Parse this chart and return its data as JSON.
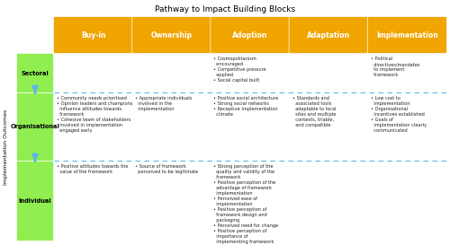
{
  "title": "Pathway to Impact Building Blocks",
  "columns": [
    "Buy-in",
    "Ownership",
    "Adoption",
    "Adaptation",
    "Implementation"
  ],
  "rows": [
    "Sectoral",
    "Organisational",
    "Individual"
  ],
  "col_header_color": "#F0A500",
  "row_header_color": "#90EE50",
  "bg_color": "#FFFFFF",
  "dashed_line_color": "#5BB8E8",
  "text_color": "#222222",
  "sectoral_texts": {
    "Adoption": "• Cosmopolitanism\n  encouraged\n• Competitive pressure\n  applied\n• Social capital built",
    "Implementation": "• Political\n  directives/mandates\n  to implement\n  framework"
  },
  "organisational_texts": {
    "Buy-in": "• Community needs prioritised\n• Opinion leaders and champions\n  influence attitudes towards\n  framework\n• Cohesive team of stakeholders\n  involved in implementation\n  engaged early",
    "Ownership": "• Appropriate individuals\n  involved in the\n  implementation",
    "Adoption": "• Positive social architecture\n• Strong social networks\n• Receptive implementation\n  climate",
    "Adaptation": "• Standards and\n  associated tools\n  adaptable to local\n  sites and multiple\n  contexts, triable,\n  and compatible",
    "Implementation": "• Low cost to\n  implementation\n• Organisational\n  incentives established\n• Goals of\n  implementation clearly\n  communicated"
  },
  "individual_texts": {
    "Buy-in": "• Positive attitudes towards the\n  value of the framework",
    "Ownership": "• Source of framework\n  perceived to be legitimate",
    "Adoption": "• Strong perception of the\n  quality and validity of the\n  framework\n• Positive perception of the\n  advantage of framework\n  implementation\n• Perceived ease of\n  implementation\n• Positive perception of\n  framework design and\n  packaging\n• Perceived need for change\n• Positive perception of\n  importance of\n  implementing framework"
  },
  "fig_w": 5.0,
  "fig_h": 2.73,
  "dpi": 100
}
